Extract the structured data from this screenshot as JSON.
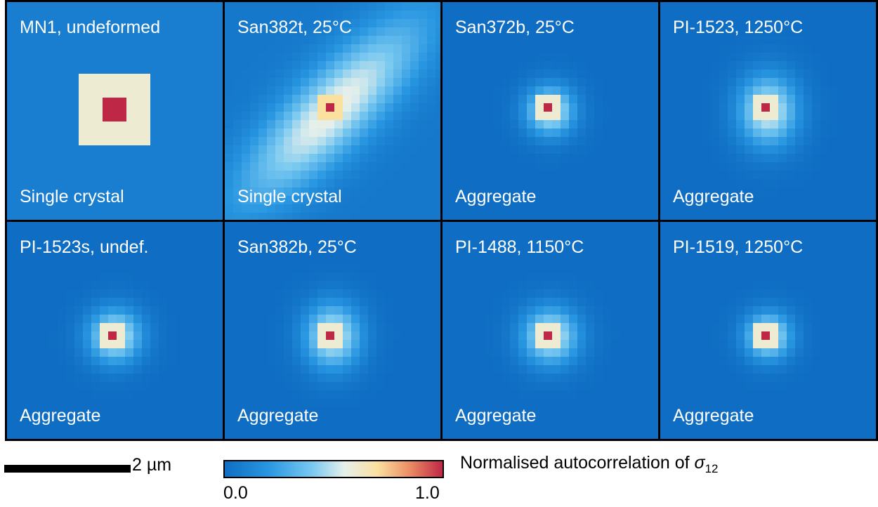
{
  "chart_data": {
    "type": "heatmap",
    "panels": [
      {
        "title": "MN1, undeformed",
        "subtitle": "Single crystal",
        "peak": 1.0,
        "spread": 0.28,
        "elongation": 1.0,
        "angle_deg": 0,
        "pixel": "coarse",
        "background": 0.08
      },
      {
        "title": "San382t, 25°C",
        "subtitle": "Single crystal",
        "peak": 1.0,
        "spread": 0.55,
        "elongation": 3.2,
        "angle_deg": -45,
        "pixel": "medium",
        "background": 0.05
      },
      {
        "title": "San372b, 25°C",
        "subtitle": "Aggregate",
        "peak": 1.0,
        "spread": 0.35,
        "elongation": 1.0,
        "angle_deg": 0,
        "pixel": "fine",
        "background": 0.0
      },
      {
        "title": "PI-1523, 1250°C",
        "subtitle": "Aggregate",
        "peak": 1.0,
        "spread": 0.42,
        "elongation": 1.2,
        "angle_deg": 90,
        "pixel": "fine",
        "background": 0.0
      },
      {
        "title": "PI-1523s, undef.",
        "subtitle": "Aggregate",
        "peak": 1.0,
        "spread": 0.38,
        "elongation": 1.0,
        "angle_deg": 0,
        "pixel": "fine",
        "background": 0.0
      },
      {
        "title": "San382b, 25°C",
        "subtitle": "Aggregate",
        "peak": 1.0,
        "spread": 0.4,
        "elongation": 1.15,
        "angle_deg": 90,
        "pixel": "fine",
        "background": 0.0
      },
      {
        "title": "PI-1488, 1150°C",
        "subtitle": "Aggregate",
        "peak": 1.0,
        "spread": 0.4,
        "elongation": 1.0,
        "angle_deg": 0,
        "pixel": "fine",
        "background": 0.0
      },
      {
        "title": "PI-1519, 1250°C",
        "subtitle": "Aggregate",
        "peak": 1.0,
        "spread": 0.33,
        "elongation": 1.0,
        "angle_deg": 0,
        "pixel": "fine",
        "background": 0.0
      }
    ],
    "colorbar": {
      "min": "0.0",
      "max": "1.0",
      "label_text": "Normalised autocorrelation of ",
      "label_symbol": "σ",
      "label_subscript": "12",
      "colormap": "blue-white-red"
    },
    "scalebar_label": "2 µm"
  }
}
